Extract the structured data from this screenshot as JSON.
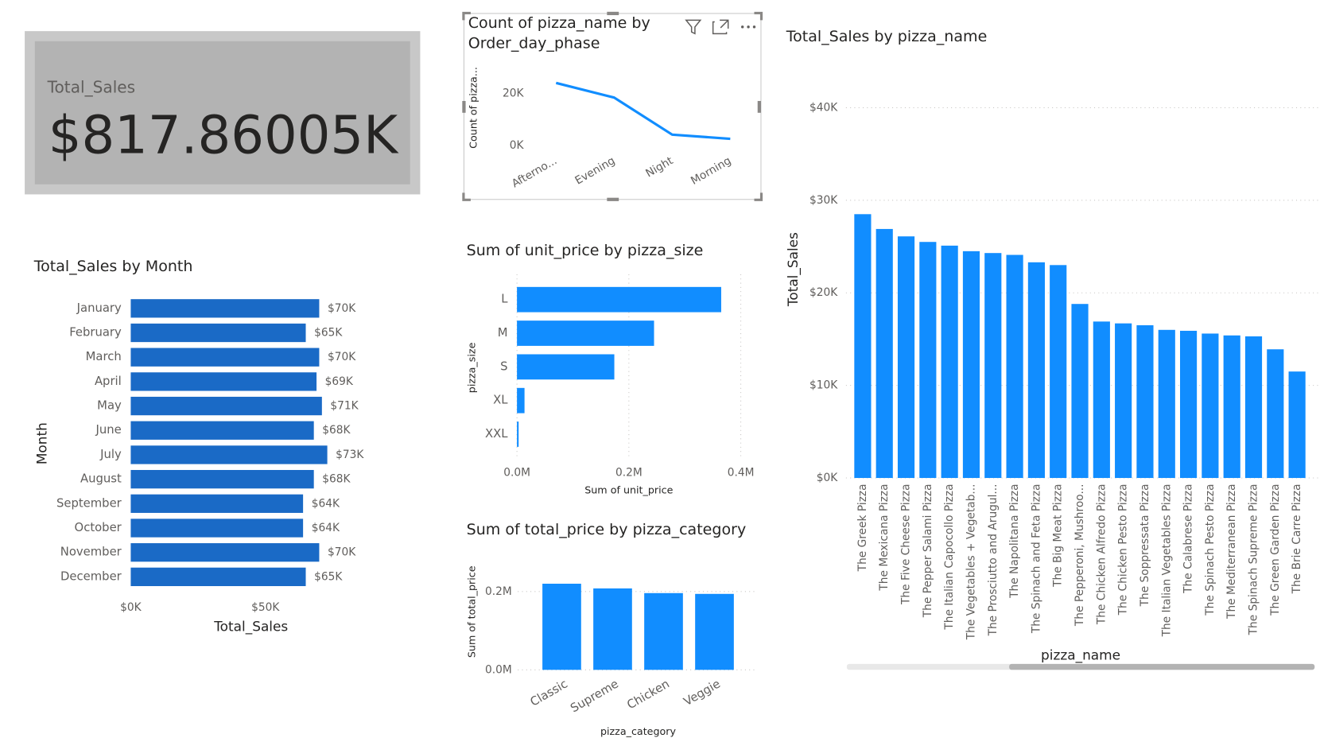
{
  "chart_data": [
    {
      "type": "card",
      "title": "Total_Sales",
      "values": [
        817860.05
      ],
      "value_labels": [
        "$817.86005K"
      ]
    },
    {
      "type": "line",
      "title": "Count of pizza_name by Order_day_phase",
      "y_label": "Count of pizza...",
      "categories": [
        "Afterno...",
        "Evening",
        "Night",
        "Morning"
      ],
      "values": [
        24000,
        18400,
        4200,
        2600
      ],
      "color": "#118dff",
      "ylim": [
        0,
        25000
      ],
      "yticks": [
        {
          "value": 0,
          "label": "0K"
        },
        {
          "value": 20000,
          "label": "20K"
        }
      ],
      "grid": false
    },
    {
      "type": "hbar",
      "title": "Total_Sales by Month",
      "x_label": "Total_Sales",
      "y_label": "Month",
      "categories": [
        "January",
        "February",
        "March",
        "April",
        "May",
        "June",
        "July",
        "August",
        "September",
        "October",
        "November",
        "December"
      ],
      "values": [
        70000,
        65000,
        70000,
        69000,
        71000,
        68000,
        73000,
        68000,
        64000,
        64000,
        70000,
        65000
      ],
      "value_labels": [
        "$70K",
        "$65K",
        "$70K",
        "$69K",
        "$71K",
        "$68K",
        "$73K",
        "$68K",
        "$64K",
        "$64K",
        "$70K",
        "$65K"
      ],
      "color": "#1a6ac6",
      "xlim": [
        0,
        75000
      ],
      "xticks": [
        {
          "value": 0,
          "label": "$0K"
        },
        {
          "value": 50000,
          "label": "$50K"
        }
      ],
      "grid": false
    },
    {
      "type": "hbar",
      "title": "Sum of unit_price by pizza_size",
      "x_label": "Sum of unit_price",
      "y_label": "pizza_size",
      "categories": [
        "L",
        "M",
        "S",
        "XL",
        "XXL"
      ],
      "values": [
        365000,
        245000,
        174000,
        13500,
        3000
      ],
      "color": "#118dff",
      "xlim": [
        0,
        400000
      ],
      "xticks": [
        {
          "value": 0,
          "label": "0.0M"
        },
        {
          "value": 200000,
          "label": "0.2M"
        },
        {
          "value": 400000,
          "label": "0.4M"
        }
      ],
      "grid": true
    },
    {
      "type": "column",
      "title": "Sum of total_price by pizza_category",
      "x_label": "pizza_category",
      "y_label": "Sum of total_price",
      "categories": [
        "Classic",
        "Supreme",
        "Chicken",
        "Veggie"
      ],
      "values": [
        220000,
        208000,
        196000,
        194000
      ],
      "color": "#118dff",
      "ylim": [
        0,
        230000
      ],
      "yticks": [
        {
          "value": 0,
          "label": "0.0M"
        },
        {
          "value": 200000,
          "label": "0.2M"
        }
      ],
      "grid": true
    },
    {
      "type": "column",
      "title": "Total_Sales by pizza_name",
      "x_label": "pizza_name",
      "y_label": "Total_Sales",
      "categories": [
        "The Greek Pizza",
        "The Mexicana Pizza",
        "The Five Cheese Pizza",
        "The Pepper Salami Pizza",
        "The Italian Capocollo Pizza",
        "The Vegetables + Vegetab...",
        "The Prosciutto and Arugul...",
        "The Napolitana Pizza",
        "The Spinach and Feta Pizza",
        "The Big Meat Pizza",
        "The Pepperoni, Mushroo...",
        "The Chicken Alfredo Pizza",
        "The Chicken Pesto Pizza",
        "The Soppressata Pizza",
        "The Italian Vegetables Pizza",
        "The Calabrese Pizza",
        "The Spinach Pesto Pizza",
        "The Mediterranean Pizza",
        "The Spinach Supreme Pizza",
        "The Green Garden Pizza",
        "The Brie Carre Pizza"
      ],
      "values": [
        28500,
        26900,
        26100,
        25500,
        25100,
        24500,
        24300,
        24100,
        23300,
        23000,
        18800,
        16900,
        16700,
        16500,
        16000,
        15900,
        15600,
        15400,
        15300,
        13900,
        11500
      ],
      "color": "#118dff",
      "ylim": [
        0,
        42000
      ],
      "yticks": [
        {
          "value": 0,
          "label": "$0K"
        },
        {
          "value": 10000,
          "label": "$10K"
        },
        {
          "value": 20000,
          "label": "$20K"
        },
        {
          "value": 30000,
          "label": "$30K"
        },
        {
          "value": 40000,
          "label": "$40K"
        }
      ],
      "grid": true
    }
  ]
}
